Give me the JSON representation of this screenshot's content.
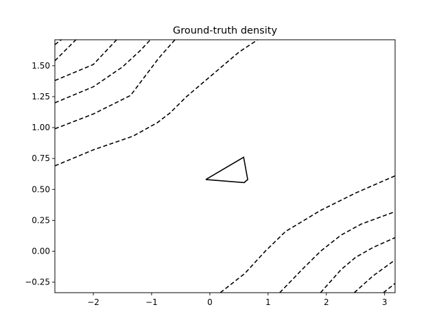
{
  "chart_data": {
    "type": "contour",
    "title": "Ground-truth density",
    "xlabel": "",
    "ylabel": "",
    "xlim": [
      -2.66,
      3.18
    ],
    "ylim": [
      -0.335,
      1.71
    ],
    "xticks": [
      -2,
      -1,
      0,
      1,
      2,
      3
    ],
    "yticks": [
      -0.25,
      0.0,
      0.25,
      0.5,
      0.75,
      1.0,
      1.25,
      1.5
    ],
    "xtick_labels": [
      "−2",
      "−1",
      "0",
      "1",
      "2",
      "3"
    ],
    "ytick_labels": [
      "−0.25",
      "0.00",
      "0.25",
      "0.50",
      "0.75",
      "1.00",
      "1.25",
      "1.50"
    ],
    "grid": false,
    "line_color": "#000000",
    "contours": [
      {
        "style": "dashed",
        "points": [
          [
            -2.66,
            0.69
          ],
          [
            -2.0,
            0.82
          ],
          [
            -1.32,
            0.93
          ],
          [
            -0.9,
            1.04
          ],
          [
            -0.68,
            1.12
          ],
          [
            -0.4,
            1.25
          ],
          [
            0.0,
            1.41
          ],
          [
            0.5,
            1.61
          ],
          [
            0.82,
            1.71
          ]
        ]
      },
      {
        "style": "dashed",
        "points": [
          [
            -2.66,
            0.99
          ],
          [
            -2.0,
            1.11
          ],
          [
            -1.36,
            1.26
          ],
          [
            -1.12,
            1.41
          ],
          [
            -0.88,
            1.56
          ],
          [
            -0.6,
            1.71
          ]
        ]
      },
      {
        "style": "dashed",
        "points": [
          [
            -2.66,
            1.2
          ],
          [
            -2.0,
            1.33
          ],
          [
            -1.5,
            1.49
          ],
          [
            -1.2,
            1.62
          ],
          [
            -1.02,
            1.71
          ]
        ]
      },
      {
        "style": "dashed",
        "points": [
          [
            -2.66,
            1.38
          ],
          [
            -2.0,
            1.51
          ],
          [
            -1.6,
            1.71
          ]
        ]
      },
      {
        "style": "dashed",
        "points": [
          [
            -2.66,
            1.54
          ],
          [
            -2.3,
            1.71
          ]
        ]
      },
      {
        "style": "dashed",
        "points": [
          [
            -2.66,
            1.67
          ],
          [
            -2.55,
            1.71
          ]
        ]
      },
      {
        "style": "solid",
        "points": [
          [
            -0.07,
            0.58
          ],
          [
            0.58,
            0.76
          ],
          [
            0.65,
            0.58
          ],
          [
            0.59,
            0.555
          ],
          [
            -0.07,
            0.58
          ]
        ]
      },
      {
        "style": "dashed",
        "points": [
          [
            0.18,
            -0.335
          ],
          [
            0.6,
            -0.18
          ],
          [
            0.95,
            0.0
          ],
          [
            1.3,
            0.16
          ],
          [
            1.9,
            0.33
          ],
          [
            2.5,
            0.47
          ],
          [
            3.18,
            0.61
          ]
        ]
      },
      {
        "style": "dashed",
        "points": [
          [
            1.2,
            -0.335
          ],
          [
            1.6,
            -0.14
          ],
          [
            1.9,
            0.0
          ],
          [
            2.25,
            0.13
          ],
          [
            2.6,
            0.22
          ],
          [
            3.18,
            0.32
          ]
        ]
      },
      {
        "style": "dashed",
        "points": [
          [
            1.9,
            -0.335
          ],
          [
            2.25,
            -0.15
          ],
          [
            2.5,
            -0.05
          ],
          [
            2.8,
            0.03
          ],
          [
            3.18,
            0.11
          ]
        ]
      },
      {
        "style": "dashed",
        "points": [
          [
            2.48,
            -0.335
          ],
          [
            2.8,
            -0.2
          ],
          [
            3.18,
            -0.07
          ]
        ]
      },
      {
        "style": "dashed",
        "points": [
          [
            2.98,
            -0.335
          ],
          [
            3.18,
            -0.26
          ]
        ]
      }
    ]
  }
}
